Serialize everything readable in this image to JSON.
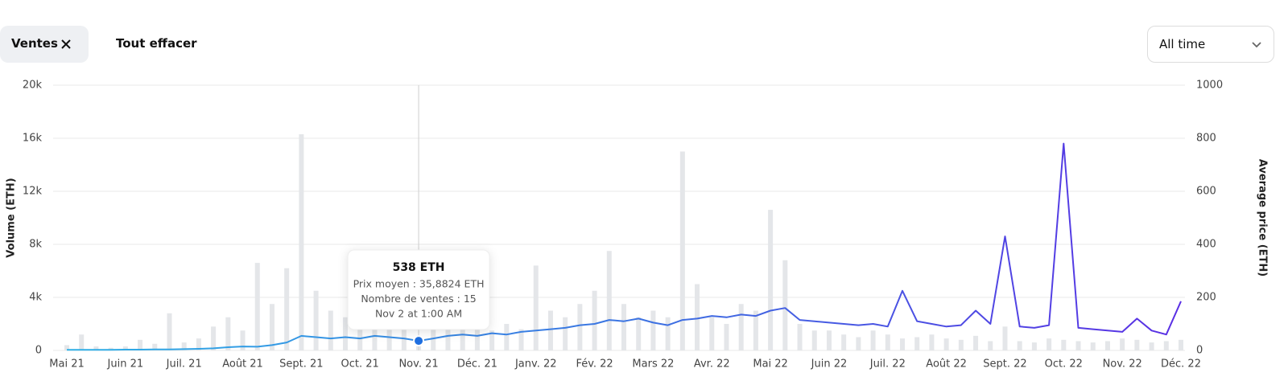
{
  "filters": {
    "chip": "Ventes",
    "clear": "Tout effacer",
    "range": "All time"
  },
  "chart_data": {
    "type": "bar",
    "y_label": "Volume (ETH)",
    "y2_label": "Average price (ETH)",
    "categories": [
      "Mai 21",
      null,
      null,
      null,
      "Juin 21",
      null,
      null,
      null,
      "Juil. 21",
      null,
      null,
      null,
      "Août 21",
      null,
      null,
      null,
      "Sept. 21",
      null,
      null,
      null,
      "Oct. 21",
      null,
      null,
      null,
      "Nov. 21",
      null,
      null,
      null,
      "Déc. 21",
      null,
      null,
      null,
      "Janv. 22",
      null,
      null,
      null,
      "Fév. 22",
      null,
      null,
      null,
      "Mars 22",
      null,
      null,
      null,
      "Avr. 22",
      null,
      null,
      null,
      "Mai 22",
      null,
      null,
      null,
      "Juin 22",
      null,
      null,
      null,
      "Juil. 22",
      null,
      null,
      null,
      "Août 22",
      null,
      null,
      null,
      "Sept. 22",
      null,
      null,
      null,
      "Oct. 22",
      null,
      null,
      null,
      "Nov. 22",
      null,
      null,
      null,
      "Déc. 22"
    ],
    "series": [
      {
        "type": "bar",
        "color": "#e4e6e9",
        "values": [
          400,
          1200,
          300,
          200,
          300,
          800,
          500,
          2800,
          600,
          900,
          1800,
          2500,
          1500,
          6600,
          3500,
          6200,
          16300,
          4500,
          3000,
          2500,
          2000,
          1800,
          3000,
          2200,
          538,
          2500,
          2000,
          2500,
          1800,
          1500,
          2000,
          1600,
          6400,
          3000,
          2500,
          3500,
          4500,
          7500,
          3500,
          2500,
          3000,
          2500,
          15000,
          5000,
          2500,
          2000,
          3500,
          3000,
          10600,
          6800,
          2000,
          1500,
          1500,
          1200,
          1000,
          1500,
          1200,
          900,
          1000,
          1200,
          900,
          800,
          1100,
          700,
          1800,
          700,
          600,
          900,
          800,
          700,
          600,
          700,
          900,
          800,
          600,
          700,
          800
        ]
      },
      {
        "type": "line",
        "axis": "y2",
        "colors": [
          "#2fb0e6",
          "#3b74e2",
          "#5a2fe4"
        ],
        "values": [
          2,
          2,
          2,
          2,
          3,
          3,
          4,
          4,
          5,
          6,
          8,
          12,
          15,
          14,
          20,
          30,
          55,
          50,
          45,
          50,
          45,
          55,
          50,
          45,
          36,
          45,
          55,
          60,
          55,
          65,
          60,
          70,
          75,
          80,
          85,
          95,
          100,
          115,
          110,
          120,
          105,
          95,
          115,
          120,
          130,
          125,
          135,
          130,
          150,
          160,
          115,
          110,
          105,
          100,
          95,
          100,
          90,
          225,
          110,
          100,
          90,
          95,
          150,
          100,
          430,
          90,
          85,
          95,
          780,
          85,
          80,
          75,
          70,
          120,
          75,
          60,
          185
        ]
      }
    ],
    "ylim": [
      0,
      20000
    ],
    "yticks": [
      0,
      {
        "value": 4000,
        "label": "4k"
      },
      {
        "value": 8000,
        "label": "8k"
      },
      {
        "value": 12000,
        "label": "12k"
      },
      {
        "value": 16000,
        "label": "16k"
      },
      {
        "value": 20000,
        "label": "20k"
      }
    ],
    "y2lim": [
      0,
      1000
    ],
    "y2ticks": [
      0,
      200,
      400,
      600,
      800,
      1000
    ],
    "grid": true,
    "tooltip": {
      "index": 24,
      "title": "538 ETH",
      "line1": "Prix moyen : 35,8824 ETH",
      "line2": "Nombre de ventes : 15",
      "line3": "Nov 2 at 1:00 AM"
    }
  }
}
